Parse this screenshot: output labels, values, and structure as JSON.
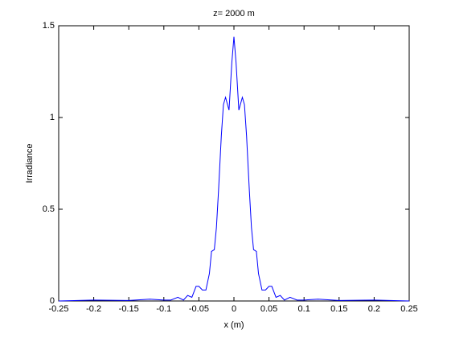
{
  "chart_data": {
    "type": "line",
    "title": "z= 2000 m",
    "x_label": "x (m)",
    "y_label": "Irradiance",
    "x": [
      -0.25,
      -0.2,
      -0.15,
      -0.12,
      -0.1,
      -0.09,
      -0.08,
      -0.072,
      -0.066,
      -0.06,
      -0.054,
      -0.05,
      -0.045,
      -0.04,
      -0.035,
      -0.032,
      -0.028,
      -0.025,
      -0.022,
      -0.018,
      -0.015,
      -0.012,
      -0.007,
      -0.003,
      0,
      0.003,
      0.007,
      0.012,
      0.015,
      0.018,
      0.022,
      0.025,
      0.028,
      0.032,
      0.035,
      0.04,
      0.045,
      0.05,
      0.054,
      0.06,
      0.066,
      0.072,
      0.08,
      0.09,
      0.1,
      0.12,
      0.15,
      0.2,
      0.25
    ],
    "series": [
      {
        "color": "#0000ff",
        "values": [
          0,
          0.005,
          0.003,
          0.01,
          0.005,
          0.005,
          0.02,
          0.005,
          0.03,
          0.02,
          0.08,
          0.08,
          0.06,
          0.06,
          0.15,
          0.27,
          0.28,
          0.4,
          0.6,
          0.9,
          1.07,
          1.11,
          1.04,
          1.3,
          1.44,
          1.3,
          1.04,
          1.11,
          1.07,
          0.9,
          0.6,
          0.4,
          0.28,
          0.27,
          0.15,
          0.06,
          0.06,
          0.08,
          0.08,
          0.02,
          0.03,
          0.005,
          0.02,
          0.005,
          0.005,
          0.01,
          0.003,
          0.005,
          0
        ]
      }
    ],
    "xlim": [
      -0.25,
      0.25
    ],
    "ylim": [
      0,
      1.5
    ],
    "xticks": [
      -0.25,
      -0.2,
      -0.15,
      -0.1,
      -0.05,
      0,
      0.05,
      0.1,
      0.15,
      0.2,
      0.25
    ],
    "yticks": [
      0,
      0.5,
      1,
      1.5
    ]
  }
}
